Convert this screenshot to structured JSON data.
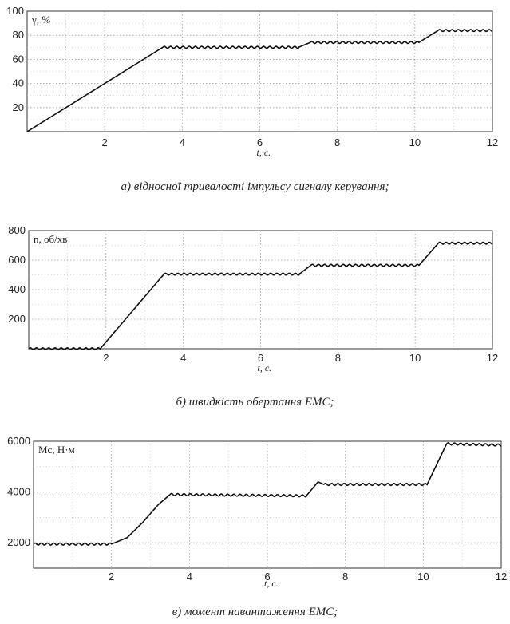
{
  "chart_data": [
    {
      "type": "line",
      "ylabel": "γ, %",
      "xlabel": "t, c.",
      "caption": "а) відносної тривалості імпульсу сигналу керування;",
      "xlim": [
        0,
        12
      ],
      "ylim": [
        0,
        100
      ],
      "xticks": [
        2,
        4,
        6,
        8,
        10,
        12
      ],
      "yticks": [
        20,
        40,
        60,
        80,
        100
      ],
      "grid": true,
      "series": [
        {
          "x": [
            0,
            3.5,
            7.0,
            7.3,
            10.1,
            10.6,
            12
          ],
          "y": [
            0,
            70,
            70,
            74,
            74,
            84,
            84
          ]
        }
      ]
    },
    {
      "type": "line",
      "ylabel": "n, об/хв",
      "xlabel": "t, c.",
      "caption": "б) швидкість обертання ЕМС;",
      "xlim": [
        0,
        12
      ],
      "ylim": [
        0,
        800
      ],
      "xticks": [
        2,
        4,
        6,
        8,
        10,
        12
      ],
      "yticks": [
        200,
        400,
        600,
        800
      ],
      "grid": true,
      "series": [
        {
          "x": [
            0,
            1.85,
            3.5,
            7.0,
            7.3,
            10.1,
            10.6,
            12
          ],
          "y": [
            0,
            0,
            505,
            505,
            565,
            565,
            715,
            715
          ]
        }
      ]
    },
    {
      "type": "line",
      "ylabel": "Мс, Н·м",
      "xlabel": "t, c.",
      "caption": "в) момент навантаження ЕМС;",
      "xlim": [
        0,
        12
      ],
      "ylim": [
        1000,
        6000
      ],
      "xticks": [
        2,
        4,
        6,
        8,
        10,
        12
      ],
      "yticks": [
        2000,
        4000,
        6000
      ],
      "grid": true,
      "series": [
        {
          "x": [
            0,
            2.0,
            2.4,
            2.8,
            3.2,
            3.5,
            7.0,
            7.3,
            7.45,
            10.1,
            10.6,
            12
          ],
          "y": [
            1950,
            1950,
            2200,
            2800,
            3500,
            3900,
            3850,
            4400,
            4300,
            4300,
            5900,
            5850
          ]
        }
      ]
    }
  ]
}
